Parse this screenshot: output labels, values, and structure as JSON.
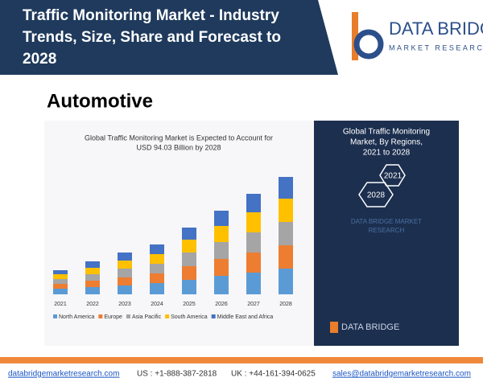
{
  "header": {
    "title": [
      "Traffic Monitoring Market - Industry",
      "Trends, Size, Share and Forecast to",
      "2028"
    ],
    "logo": {
      "name": "DATA BRIDGE",
      "tagline": "MARKET RESEARCH"
    }
  },
  "subtitle": "Automotive",
  "chart_data": {
    "type": "bar",
    "stacked": true,
    "title": [
      "Global Traffic Monitoring Market is Expected to Account for",
      "USD 94.03 Billion by 2028"
    ],
    "categories": [
      "2021",
      "2022",
      "2023",
      "2024",
      "2025",
      "2026",
      "2027",
      "2028"
    ],
    "ylim": [
      0,
      150
    ],
    "series": [
      {
        "name": "North America",
        "color": "#5b9bd5",
        "values": [
          7,
          9,
          11,
          14,
          18,
          23,
          27,
          32
        ]
      },
      {
        "name": "Europe",
        "color": "#ed7d31",
        "values": [
          6,
          8,
          10,
          12,
          17,
          21,
          25,
          29
        ]
      },
      {
        "name": "Asia Pacific",
        "color": "#a5a5a5",
        "values": [
          6,
          8,
          11,
          12,
          17,
          21,
          25,
          29
        ]
      },
      {
        "name": "South America",
        "color": "#ffc000",
        "values": [
          6,
          8,
          10,
          12,
          16,
          20,
          25,
          29
        ]
      },
      {
        "name": "Middle East and Africa",
        "color": "#4472c4",
        "values": [
          5,
          8,
          10,
          12,
          15,
          19,
          23,
          27
        ]
      }
    ]
  },
  "panel": {
    "title": [
      "Global Traffic Monitoring",
      "Market, By Regions,",
      "2021 to 2028"
    ],
    "hexagons": [
      "2021",
      "2028"
    ],
    "watermark": [
      "DATA BRIDGE MARKET",
      "RESEARCH"
    ],
    "logo": "DATA BRIDGE"
  },
  "footer": {
    "website": "databridgemarketresearch.com",
    "us": "US : +1-888-387-2818",
    "uk": "UK : +44-161-394-0625",
    "email": "sales@databridgemarketresearch.com"
  }
}
